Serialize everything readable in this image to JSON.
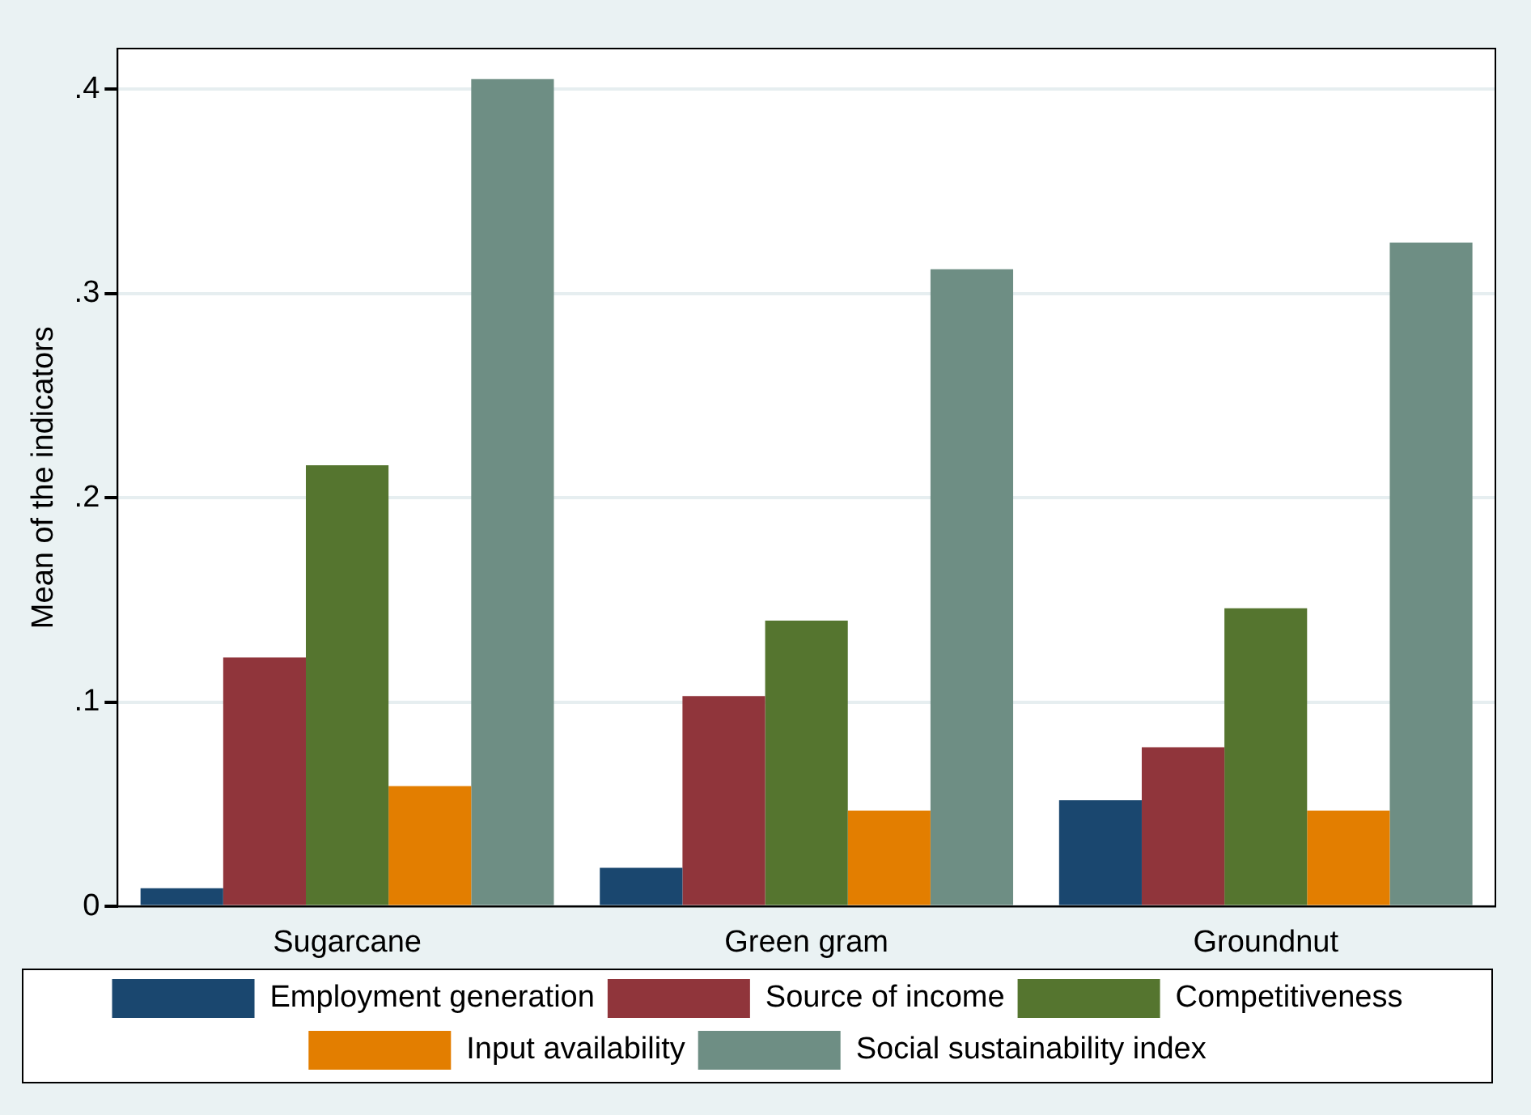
{
  "chart_data": {
    "type": "bar",
    "ylabel": "Mean of the indicators",
    "categories": [
      "Sugarcane",
      "Green gram",
      "Groundnut"
    ],
    "series": [
      {
        "name": "Employment generation",
        "color": "#1a476f",
        "values": [
          0.009,
          0.019,
          0.052
        ]
      },
      {
        "name": "Source of income",
        "color": "#90353b",
        "values": [
          0.122,
          0.103,
          0.078
        ]
      },
      {
        "name": "Competitiveness",
        "color": "#55752f",
        "values": [
          0.216,
          0.14,
          0.146
        ]
      },
      {
        "name": "Input availability",
        "color": "#e37e00",
        "values": [
          0.059,
          0.047,
          0.047
        ]
      },
      {
        "name": "Social sustainability index",
        "color": "#6e8e84",
        "values": [
          0.405,
          0.312,
          0.325
        ]
      }
    ],
    "ylim": [
      0,
      0.42
    ],
    "yticks": [
      {
        "value": 0,
        "label": "0"
      },
      {
        "value": 0.1,
        "label": ".1"
      },
      {
        "value": 0.2,
        "label": ".2"
      },
      {
        "value": 0.3,
        "label": ".3"
      },
      {
        "value": 0.4,
        "label": ".4"
      }
    ],
    "grid": "y",
    "legend": "bottom"
  }
}
